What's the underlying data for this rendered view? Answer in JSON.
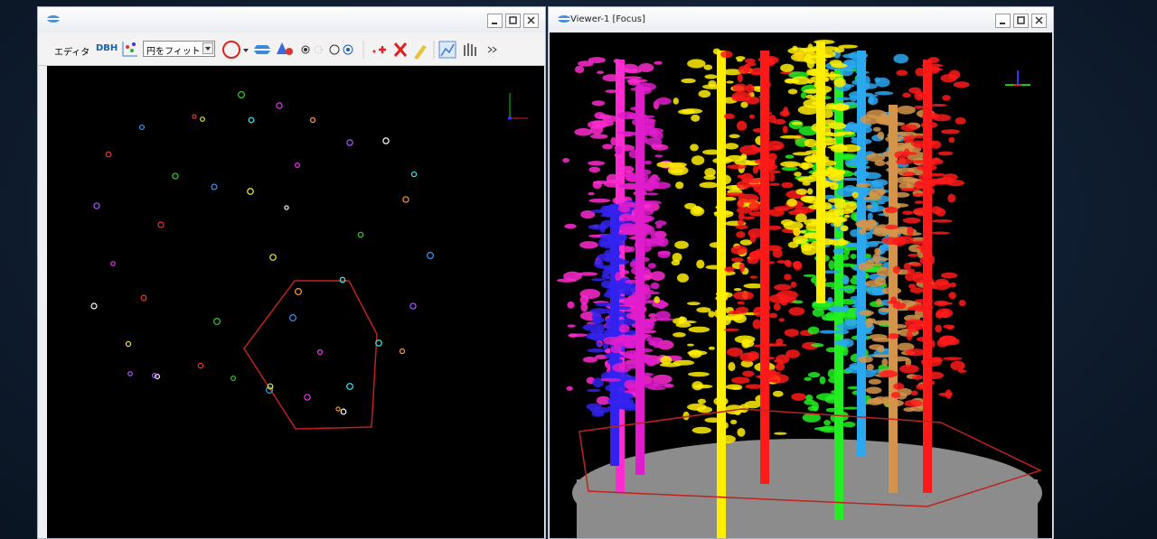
{
  "left_window": {
    "toolbar": {
      "editor_menu": "エディタ",
      "dbh_button": "DBH",
      "fit_mode": "円をフィット"
    }
  },
  "right_window": {
    "title": "Viewer-1 [Focus]"
  }
}
